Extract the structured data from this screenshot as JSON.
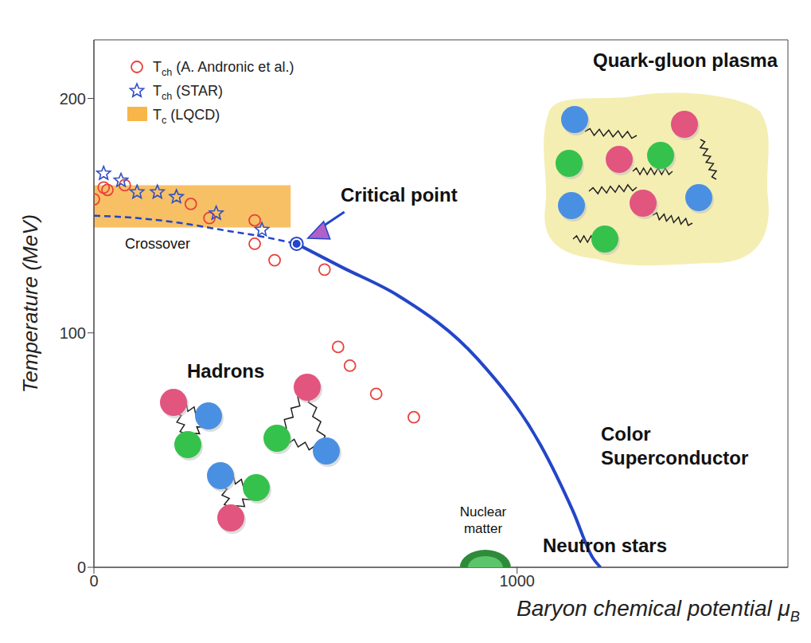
{
  "chart_data": {
    "type": "scatter",
    "x_label": "Baryon chemical potential μB",
    "y_label": "Temperature (MeV)",
    "xlim": [
      0,
      1640
    ],
    "xticks": [
      0,
      1000
    ],
    "ylim": [
      0,
      225
    ],
    "yticks": [
      0,
      100,
      200
    ],
    "grid": false,
    "legend": "upper left",
    "series": [
      {
        "name": "Tch (A. Andronic et al.)",
        "type": "scatter",
        "marker": "open circle",
        "color": "#e8413c",
        "x": [
          0,
          23,
          32,
          73,
          229,
          273,
          380,
          380,
          427,
          545,
          577,
          605,
          667,
          756
        ],
        "values": [
          157,
          162,
          161,
          163,
          155,
          149,
          148,
          138,
          131,
          127,
          94,
          86,
          74,
          64
        ]
      },
      {
        "name": "Tch (STAR)",
        "type": "scatter",
        "marker": "star",
        "color": "#2f4fc4",
        "x": [
          23,
          64,
          102,
          150,
          195,
          289,
          397
        ],
        "values": [
          168,
          165,
          160,
          160,
          158,
          151,
          144
        ]
      },
      {
        "name": "Tc (LQCD)",
        "type": "band",
        "color": "#f7b54a",
        "x_range": [
          0,
          465
        ],
        "y_range": [
          145,
          163
        ]
      }
    ],
    "crossover": {
      "label": "Crossover",
      "color": "#2346c8",
      "line_style": "dashed",
      "x": [
        0,
        100,
        200,
        300,
        400,
        479
      ],
      "values": [
        150,
        149,
        147,
        144,
        141,
        138
      ]
    },
    "phase_boundary": {
      "color": "#2346c8",
      "line_style": "solid",
      "x": [
        479,
        586,
        718,
        906,
        1056,
        1132,
        1179,
        1197
      ],
      "values": [
        138,
        128,
        116,
        89,
        52,
        24,
        4,
        0
      ]
    },
    "critical_point": {
      "label": "Critical point",
      "x": 479,
      "y": 138,
      "color": "#2346c8"
    },
    "nuclear_matter": {
      "label": "Nuclear matter",
      "x": 925,
      "y": 0,
      "color": "#2e8b3a"
    },
    "annotations": [
      "Quark-gluon plasma",
      "Hadrons",
      "Color Superconductor",
      "Neutron stars"
    ]
  }
}
